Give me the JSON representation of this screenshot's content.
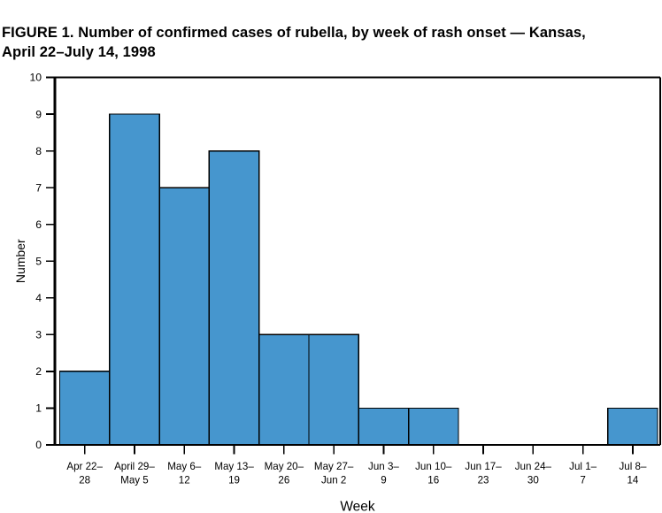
{
  "title": {
    "line1": "FIGURE 1. Number of confirmed cases of rubella, by week of rash onset — Kansas,",
    "line2": "April 22–July 14, 1998"
  },
  "chart_data": {
    "type": "bar",
    "title": "FIGURE 1. Number of confirmed cases of rubella, by week of rash onset — Kansas, April 22–July 14, 1998",
    "categories": [
      [
        "Apr 22–",
        "28"
      ],
      [
        "April 29–",
        "May 5"
      ],
      [
        "May 6–",
        "12"
      ],
      [
        "May 13–",
        "19"
      ],
      [
        "May 20–",
        "26"
      ],
      [
        "May 27–",
        "Jun 2"
      ],
      [
        "Jun 3–",
        "9"
      ],
      [
        "Jun 10–",
        "16"
      ],
      [
        "Jun 17–",
        "23"
      ],
      [
        "Jun 24–",
        "30"
      ],
      [
        "Jul 1–",
        "7"
      ],
      [
        "Jul 8–",
        "14"
      ]
    ],
    "values": [
      2,
      9,
      7,
      8,
      3,
      3,
      1,
      1,
      0,
      0,
      0,
      1
    ],
    "xlabel": "Week",
    "ylabel": "Number",
    "ylim": [
      0,
      10
    ],
    "yticks": [
      0,
      1,
      2,
      3,
      4,
      5,
      6,
      7,
      8,
      9,
      10
    ],
    "bar_color": "#4696ce",
    "bar_border_color": "#000000",
    "axis_color": "#000000",
    "grid": false,
    "legend_position": "none"
  }
}
